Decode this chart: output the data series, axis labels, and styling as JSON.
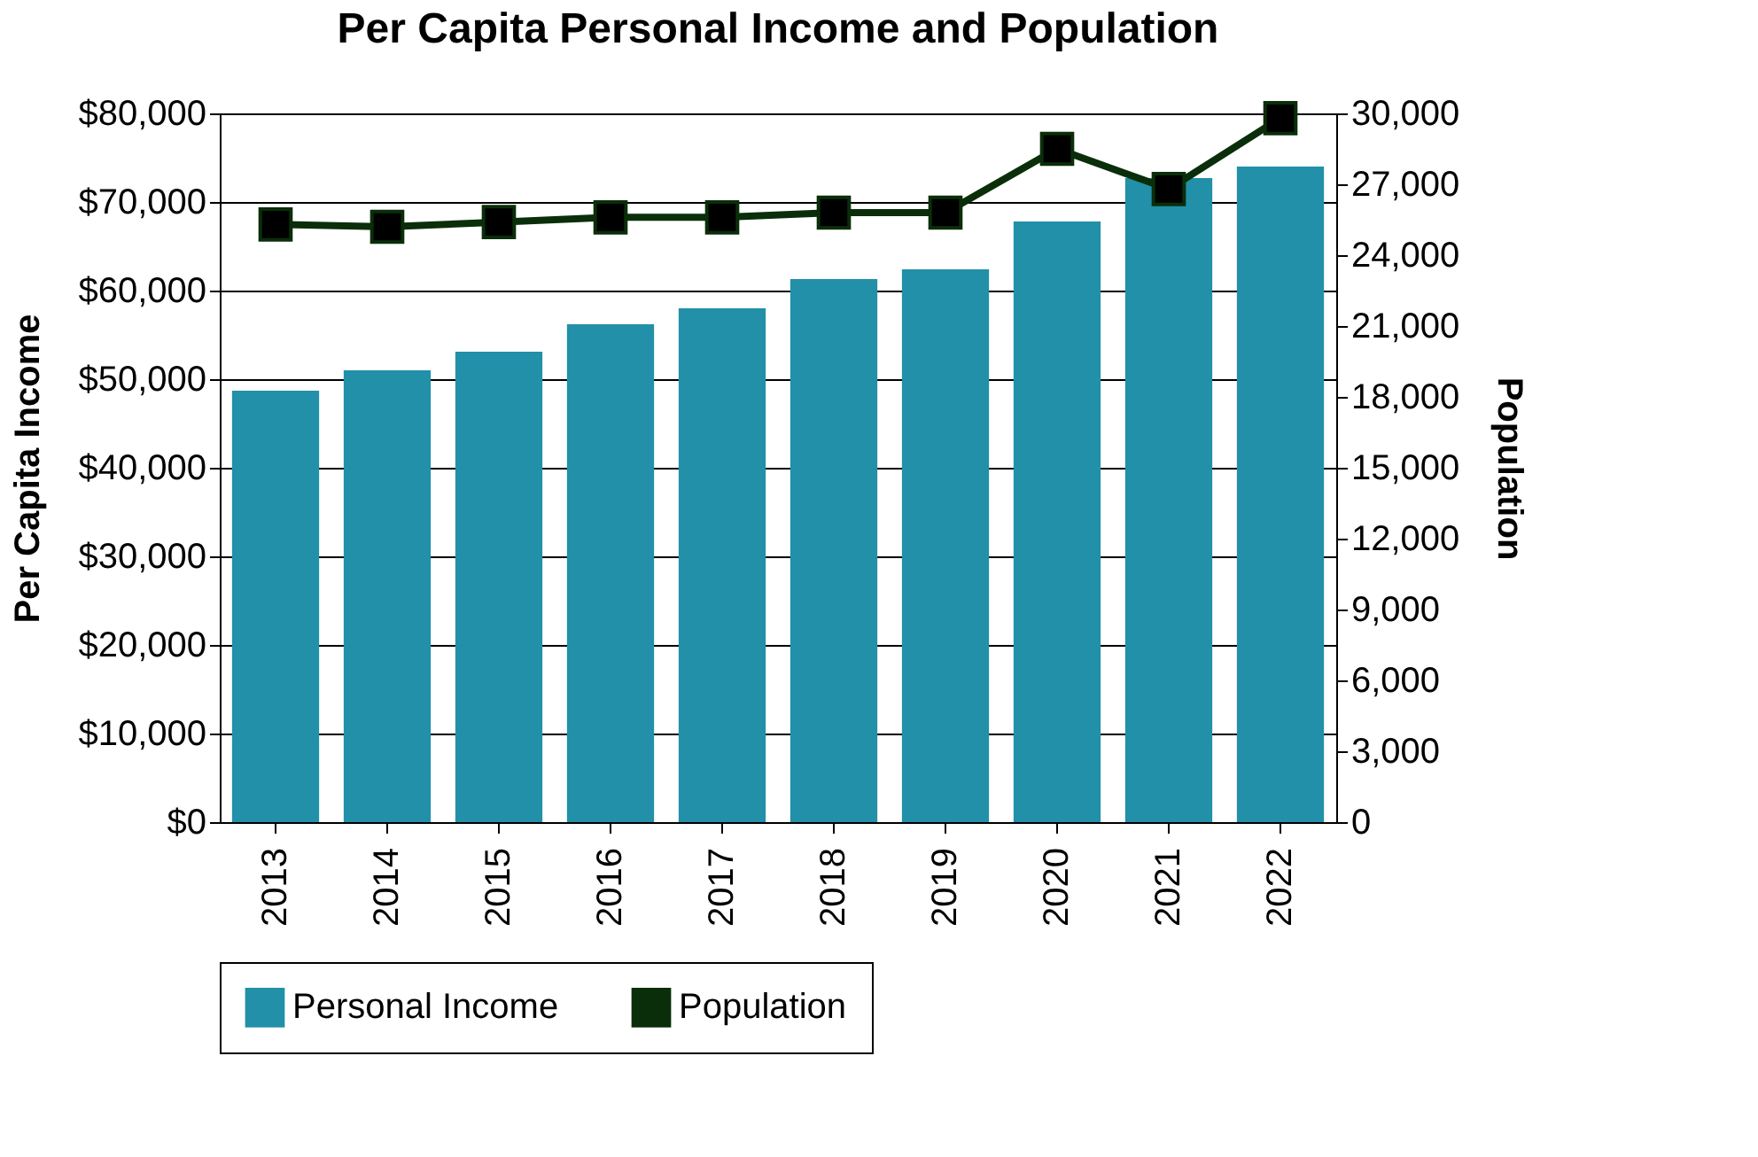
{
  "chart_data": {
    "type": "bar",
    "title": "Per Capita Personal Income and Population",
    "ylabel": "Per Capita Income",
    "y2label": "Population",
    "categories": [
      "2013",
      "2014",
      "2015",
      "2016",
      "2017",
      "2018",
      "2019",
      "2020",
      "2021",
      "2022"
    ],
    "series": [
      {
        "name": "Personal Income",
        "color": "#2190a8",
        "values": [
          48700,
          51000,
          53100,
          56200,
          58000,
          61300,
          62400,
          67800,
          72700,
          74000
        ]
      },
      {
        "name": "Population",
        "type": "line",
        "axis": "y2",
        "color": "#0a2e0a",
        "marker": "square",
        "values": [
          25300,
          25200,
          25400,
          25600,
          25600,
          25800,
          25800,
          28500,
          26800,
          29800
        ]
      }
    ],
    "ylim": [
      0,
      80000
    ],
    "yticks": [
      {
        "value": 0,
        "label": "$0"
      },
      {
        "value": 10000,
        "label": "$10,000"
      },
      {
        "value": 20000,
        "label": "$20,000"
      },
      {
        "value": 30000,
        "label": "$30,000"
      },
      {
        "value": 40000,
        "label": "$40,000"
      },
      {
        "value": 50000,
        "label": "$50,000"
      },
      {
        "value": 60000,
        "label": "$60,000"
      },
      {
        "value": 70000,
        "label": "$70,000"
      },
      {
        "value": 80000,
        "label": "$80,000"
      }
    ],
    "y2lim": [
      0,
      30000
    ],
    "y2ticks": [
      {
        "value": 0,
        "label": "0"
      },
      {
        "value": 3000,
        "label": "3,000"
      },
      {
        "value": 6000,
        "label": "6,000"
      },
      {
        "value": 9000,
        "label": "9,000"
      },
      {
        "value": 12000,
        "label": "12,000"
      },
      {
        "value": 15000,
        "label": "15,000"
      },
      {
        "value": 18000,
        "label": "18,000"
      },
      {
        "value": 21000,
        "label": "21,000"
      },
      {
        "value": 24000,
        "label": "24,000"
      },
      {
        "value": 27000,
        "label": "27,000"
      },
      {
        "value": 30000,
        "label": "30,000"
      }
    ],
    "grid": "y",
    "legend": "bottom"
  }
}
